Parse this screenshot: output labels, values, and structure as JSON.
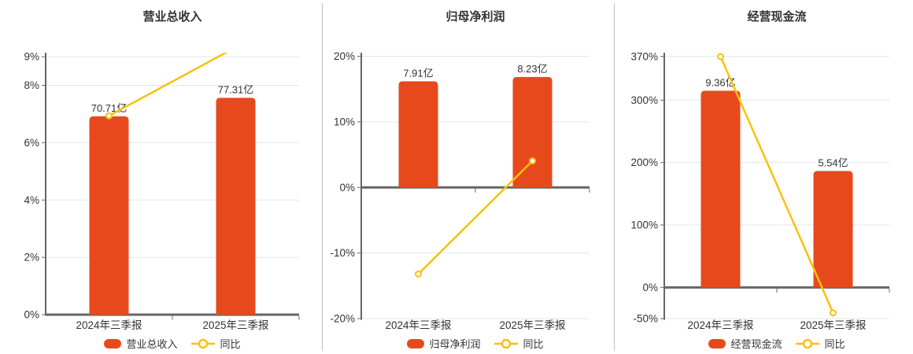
{
  "style": {
    "bar_color": "#e8491c",
    "line_color": "#fac10d",
    "grid_color": "#dfe6ee",
    "axis_color": "#666666",
    "text_color": "#333333",
    "divider_color": "#c0c0c0",
    "background": "#ffffff"
  },
  "chart_data": [
    {
      "id": "revenue",
      "type": "bar",
      "title": "营业总收入",
      "unit": "亿",
      "categories": [
        "2024年三季报",
        "2025年三季报"
      ],
      "bar_series": {
        "name": "营业总收入",
        "values": [
          70.71,
          77.31
        ],
        "labels": [
          "70.71亿",
          "77.31亿"
        ]
      },
      "line_series": {
        "name": "同比",
        "values_pct": [
          6.94,
          9.33
        ]
      },
      "y_ticks": [
        {
          "label": "9%",
          "value": 9
        },
        {
          "label": "8%",
          "value": 8
        },
        {
          "label": "6%",
          "value": 6
        },
        {
          "label": "4%",
          "value": 4
        },
        {
          "label": "2%",
          "value": 2
        },
        {
          "label": "0%",
          "value": 0
        }
      ],
      "y_axis": {
        "min": 0,
        "max": 9.14
      },
      "bar_axis_max": 93.4,
      "grid": true,
      "legend_position": "bottom"
    },
    {
      "id": "net-profit",
      "type": "bar",
      "title": "归母净利润",
      "unit": "亿",
      "categories": [
        "2024年三季报",
        "2025年三季报"
      ],
      "bar_series": {
        "name": "归母净利润",
        "values": [
          7.91,
          8.23
        ],
        "labels": [
          "7.91亿",
          "8.23亿"
        ]
      },
      "line_series": {
        "name": "同比",
        "values_pct": [
          -13.2,
          4.05
        ]
      },
      "y_ticks": [
        {
          "label": "20%",
          "value": 20
        },
        {
          "label": "10%",
          "value": 10
        },
        {
          "label": "0%",
          "value": 0
        },
        {
          "label": "-10%",
          "value": -10
        },
        {
          "label": "-20%",
          "value": -20
        }
      ],
      "y_axis": {
        "min": -20,
        "max": 20.55
      },
      "bar_axis_max": 10.04,
      "grid": true,
      "legend_position": "bottom"
    },
    {
      "id": "cash-flow",
      "type": "bar",
      "title": "经营现金流",
      "unit": "亿",
      "categories": [
        "2024年三季报",
        "2025年三季报"
      ],
      "bar_series": {
        "name": "经营现金流",
        "values": [
          9.36,
          5.54
        ],
        "labels": [
          "9.36亿",
          "5.54亿"
        ]
      },
      "line_series": {
        "name": "同比",
        "values_pct": [
          369.7,
          -40.8
        ]
      },
      "y_ticks": [
        {
          "label": "370%",
          "value": 370
        },
        {
          "label": "300%",
          "value": 300
        },
        {
          "label": "200%",
          "value": 200
        },
        {
          "label": "100%",
          "value": 100
        },
        {
          "label": "0%",
          "value": 0
        },
        {
          "label": "-50%",
          "value": -50
        }
      ],
      "y_axis": {
        "min": -50,
        "max": 376
      },
      "bar_axis_max": 11.17,
      "grid": true,
      "legend_position": "bottom"
    }
  ]
}
